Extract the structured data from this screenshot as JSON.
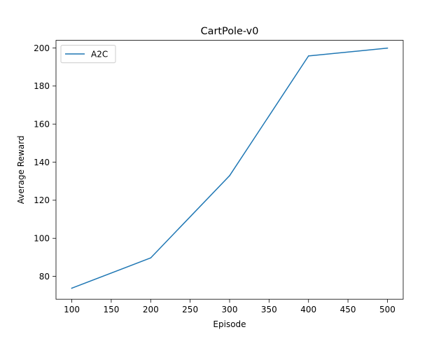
{
  "chart_data": {
    "type": "line",
    "title": "CartPole-v0",
    "xlabel": "Episode",
    "ylabel": "Average Reward",
    "x": [
      100,
      200,
      300,
      400,
      500
    ],
    "series": [
      {
        "name": "A2C",
        "color": "#1f77b4",
        "values": [
          73.8,
          89.7,
          132.9,
          195.8,
          199.9
        ]
      }
    ],
    "xlim": [
      80,
      520
    ],
    "ylim": [
      68,
      204
    ],
    "xticks": [
      100,
      150,
      200,
      250,
      300,
      350,
      400,
      450,
      500
    ],
    "yticks": [
      80,
      100,
      120,
      140,
      160,
      180,
      200
    ],
    "grid": false,
    "legend_position": "upper-left"
  }
}
